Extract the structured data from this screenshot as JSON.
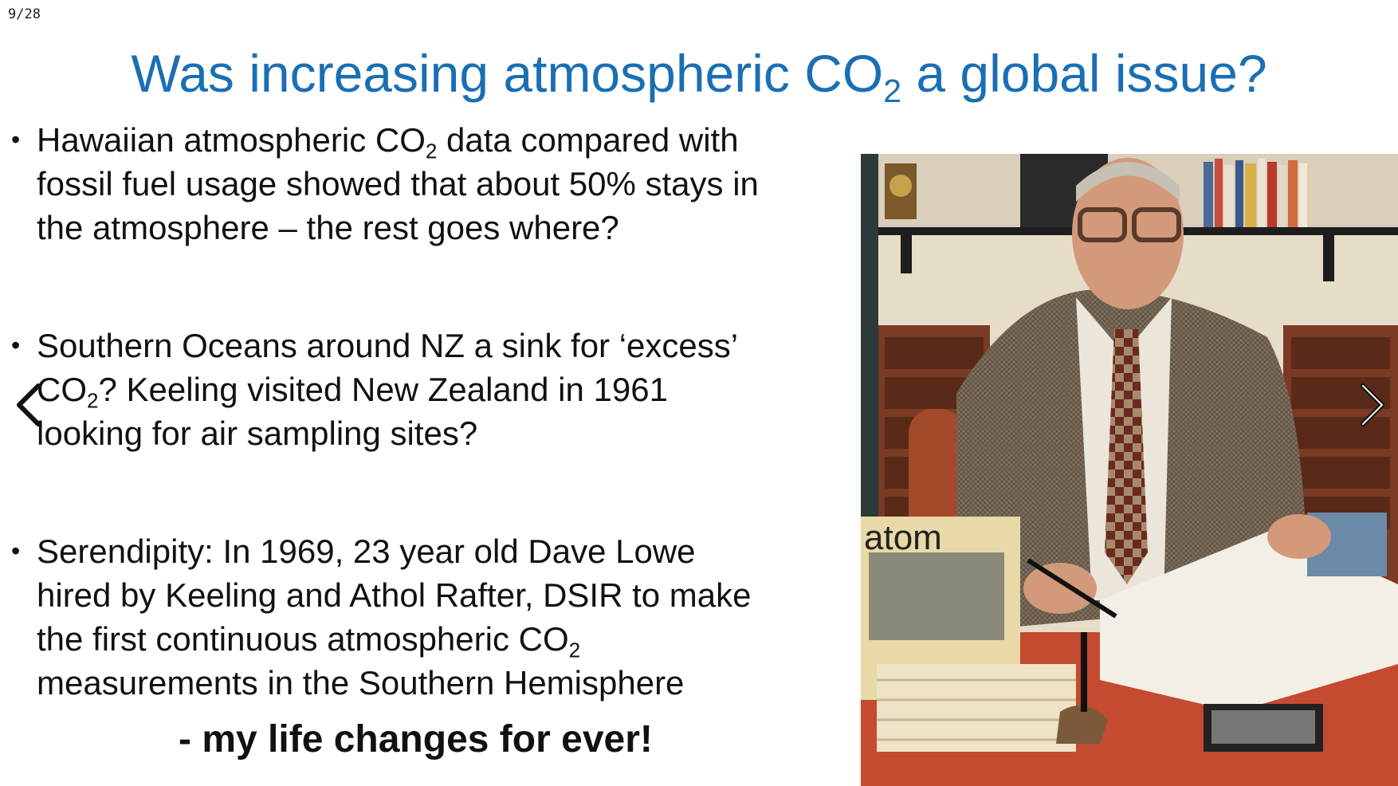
{
  "slide": {
    "counter": "9/28",
    "title_pre": "Was increasing atmospheric CO",
    "title_sub": "2",
    "title_post": " a global issue?",
    "bullets": [
      {
        "line1_pre": "Hawaiian atmospheric CO",
        "line1_sub": "2",
        "line1_post": " data compared with",
        "line2": "fossil fuel usage showed that about 50% stays in",
        "line3": "the atmosphere – the rest goes where?"
      },
      {
        "line1": "Southern Oceans around NZ a sink for ‘excess’",
        "line2_pre": "CO",
        "line2_sub": "2",
        "line2_post": "? Keeling visited New Zealand in 1961",
        "line3": "looking for air sampling sites?"
      },
      {
        "line1": "Serendipity: In 1969,  23 year old Dave Lowe",
        "line2": "hired by Keeling and Athol Rafter, DSIR to make",
        "line3_pre": "the first continuous atmospheric CO",
        "line3_sub": "2",
        "line4": "measurements in the Southern Hemisphere"
      }
    ],
    "closing": "- my life changes for ever!",
    "photo": {
      "magazine_text": "atom"
    }
  },
  "navigation": {
    "prev_icon": "chevron-left-icon",
    "next_icon": "chevron-right-icon"
  },
  "colors": {
    "title": "#1a6fb4",
    "text": "#111111",
    "background": "#ffffff"
  }
}
